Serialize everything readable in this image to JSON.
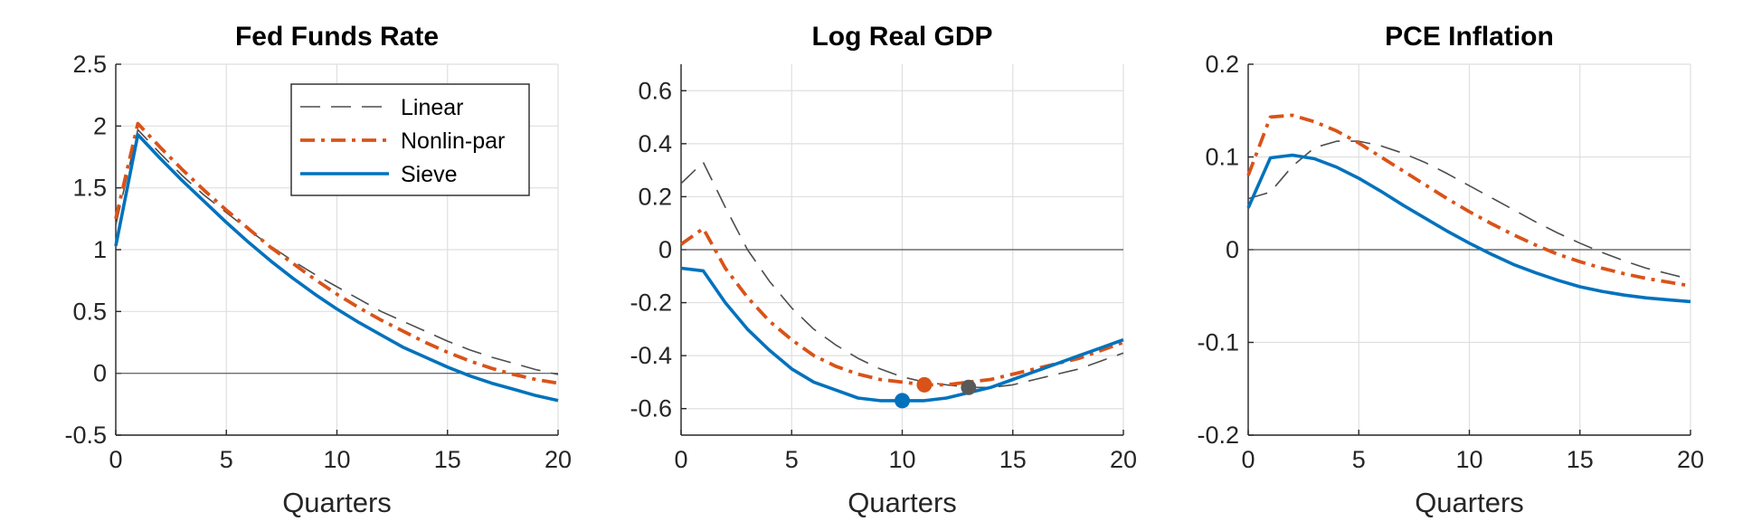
{
  "chart_data": [
    {
      "type": "line",
      "title": "Fed Funds Rate",
      "xlabel": "Quarters",
      "ylabel": "",
      "xlim": [
        0,
        20
      ],
      "ylim": [
        -0.5,
        2.5
      ],
      "xticks": [
        "0",
        "5",
        "10",
        "15",
        "20"
      ],
      "yticks": [
        "-0.5",
        "0",
        "0.5",
        "1",
        "1.5",
        "2",
        "2.5"
      ],
      "grid": true,
      "legend": "top-right",
      "series": [
        {
          "name": "Linear",
          "color": "#4d4d4d",
          "style": "dashed",
          "x": [
            0,
            1,
            2,
            3,
            4,
            5,
            6,
            7,
            8,
            9,
            10,
            11,
            12,
            13,
            14,
            15,
            16,
            17,
            18,
            19,
            20
          ],
          "y": [
            1.2,
            1.97,
            1.78,
            1.6,
            1.44,
            1.3,
            1.16,
            1.03,
            0.91,
            0.8,
            0.7,
            0.6,
            0.5,
            0.42,
            0.34,
            0.26,
            0.19,
            0.13,
            0.08,
            0.03,
            -0.01
          ]
        },
        {
          "name": "Nonlin-par",
          "color": "#d95319",
          "style": "dashdot",
          "x": [
            0,
            1,
            2,
            3,
            4,
            5,
            6,
            7,
            8,
            9,
            10,
            11,
            12,
            13,
            14,
            15,
            16,
            17,
            18,
            19,
            20
          ],
          "y": [
            1.25,
            2.02,
            1.83,
            1.65,
            1.48,
            1.32,
            1.17,
            1.02,
            0.89,
            0.76,
            0.64,
            0.53,
            0.43,
            0.34,
            0.25,
            0.17,
            0.1,
            0.04,
            -0.01,
            -0.05,
            -0.08
          ]
        },
        {
          "name": "Sieve",
          "color": "#0072bd",
          "style": "solid",
          "x": [
            0,
            1,
            2,
            3,
            4,
            5,
            6,
            7,
            8,
            9,
            10,
            11,
            12,
            13,
            14,
            15,
            16,
            17,
            18,
            19,
            20
          ],
          "y": [
            1.03,
            1.93,
            1.74,
            1.56,
            1.39,
            1.22,
            1.06,
            0.91,
            0.77,
            0.64,
            0.52,
            0.41,
            0.31,
            0.21,
            0.13,
            0.05,
            -0.02,
            -0.08,
            -0.13,
            -0.18,
            -0.22
          ]
        }
      ]
    },
    {
      "type": "line",
      "title": "Log Real GDP",
      "xlabel": "Quarters",
      "ylabel": "",
      "xlim": [
        0,
        20
      ],
      "ylim": [
        -0.7,
        0.7
      ],
      "xticks": [
        "0",
        "5",
        "10",
        "15",
        "20"
      ],
      "yticks": [
        "-0.6",
        "-0.4",
        "-0.2",
        "0",
        "0.2",
        "0.4",
        "0.6"
      ],
      "grid": true,
      "series": [
        {
          "name": "Linear",
          "color": "#4d4d4d",
          "style": "dashed",
          "x": [
            0,
            1,
            2,
            3,
            4,
            5,
            6,
            7,
            8,
            9,
            10,
            11,
            12,
            13,
            14,
            15,
            16,
            17,
            18,
            19,
            20
          ],
          "y": [
            0.25,
            0.33,
            0.16,
            0.0,
            -0.12,
            -0.22,
            -0.3,
            -0.36,
            -0.41,
            -0.45,
            -0.48,
            -0.5,
            -0.51,
            -0.52,
            -0.52,
            -0.51,
            -0.49,
            -0.47,
            -0.45,
            -0.42,
            -0.39
          ]
        },
        {
          "name": "Nonlin-par",
          "color": "#d95319",
          "style": "dashdot",
          "x": [
            0,
            1,
            2,
            3,
            4,
            5,
            6,
            7,
            8,
            9,
            10,
            11,
            12,
            13,
            14,
            15,
            16,
            17,
            18,
            19,
            20
          ],
          "y": [
            0.02,
            0.08,
            -0.07,
            -0.18,
            -0.27,
            -0.34,
            -0.4,
            -0.44,
            -0.47,
            -0.49,
            -0.5,
            -0.51,
            -0.51,
            -0.5,
            -0.49,
            -0.47,
            -0.45,
            -0.43,
            -0.41,
            -0.38,
            -0.35
          ]
        },
        {
          "name": "Sieve",
          "color": "#0072bd",
          "style": "solid",
          "x": [
            0,
            1,
            2,
            3,
            4,
            5,
            6,
            7,
            8,
            9,
            10,
            11,
            12,
            13,
            14,
            15,
            16,
            17,
            18,
            19,
            20
          ],
          "y": [
            -0.07,
            -0.08,
            -0.2,
            -0.3,
            -0.38,
            -0.45,
            -0.5,
            -0.53,
            -0.56,
            -0.57,
            -0.57,
            -0.57,
            -0.56,
            -0.54,
            -0.52,
            -0.49,
            -0.46,
            -0.43,
            -0.4,
            -0.37,
            -0.34
          ]
        }
      ],
      "markers": [
        {
          "series": "Sieve",
          "x": 10,
          "y": -0.57,
          "color": "#0072bd"
        },
        {
          "series": "Nonlin-par",
          "x": 11,
          "y": -0.51,
          "color": "#d95319"
        },
        {
          "series": "Linear",
          "x": 13,
          "y": -0.52,
          "color": "#595959"
        }
      ]
    },
    {
      "type": "line",
      "title": "PCE Inflation",
      "xlabel": "Quarters",
      "ylabel": "",
      "xlim": [
        0,
        20
      ],
      "ylim": [
        -0.2,
        0.2
      ],
      "xticks": [
        "0",
        "5",
        "10",
        "15",
        "20"
      ],
      "yticks": [
        "-0.2",
        "-0.1",
        "0",
        "0.1",
        "0.2"
      ],
      "grid": true,
      "series": [
        {
          "name": "Linear",
          "color": "#4d4d4d",
          "style": "dashed",
          "x": [
            0,
            1,
            2,
            3,
            4,
            5,
            6,
            7,
            8,
            9,
            10,
            11,
            12,
            13,
            14,
            15,
            16,
            17,
            18,
            19,
            20
          ],
          "y": [
            0.055,
            0.062,
            0.09,
            0.11,
            0.117,
            0.117,
            0.112,
            0.104,
            0.094,
            0.082,
            0.069,
            0.056,
            0.043,
            0.03,
            0.018,
            0.007,
            -0.003,
            -0.012,
            -0.02,
            -0.026,
            -0.032
          ]
        },
        {
          "name": "Nonlin-par",
          "color": "#d95319",
          "style": "dashdot",
          "x": [
            0,
            1,
            2,
            3,
            4,
            5,
            6,
            7,
            8,
            9,
            10,
            11,
            12,
            13,
            14,
            15,
            16,
            17,
            18,
            19,
            20
          ],
          "y": [
            0.08,
            0.143,
            0.145,
            0.138,
            0.128,
            0.115,
            0.1,
            0.085,
            0.07,
            0.055,
            0.041,
            0.028,
            0.016,
            0.005,
            -0.005,
            -0.013,
            -0.02,
            -0.026,
            -0.031,
            -0.035,
            -0.039
          ]
        },
        {
          "name": "Sieve",
          "color": "#0072bd",
          "style": "solid",
          "x": [
            0,
            1,
            2,
            3,
            4,
            5,
            6,
            7,
            8,
            9,
            10,
            11,
            12,
            13,
            14,
            15,
            16,
            17,
            18,
            19,
            20
          ],
          "y": [
            0.045,
            0.099,
            0.102,
            0.098,
            0.089,
            0.077,
            0.063,
            0.048,
            0.034,
            0.02,
            0.007,
            -0.005,
            -0.016,
            -0.025,
            -0.033,
            -0.04,
            -0.045,
            -0.049,
            -0.052,
            -0.054,
            -0.056
          ]
        }
      ]
    }
  ]
}
